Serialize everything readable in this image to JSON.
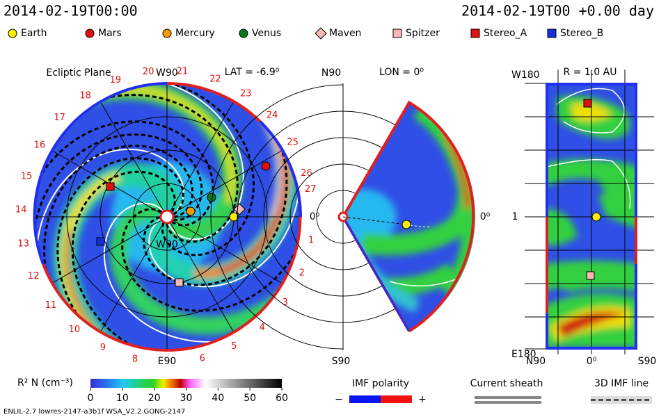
{
  "header": {
    "time_left": "2014-02-19T00:00",
    "time_right": "2014-02-19T00 +0.00 day"
  },
  "legend": [
    {
      "name": "Earth",
      "color": "#ffee00",
      "shape": "circle"
    },
    {
      "name": "Mars",
      "color": "#e01010",
      "shape": "circle"
    },
    {
      "name": "Mercury",
      "color": "#f59a00",
      "shape": "circle"
    },
    {
      "name": "Venus",
      "color": "#0c7a1a",
      "shape": "circle"
    },
    {
      "name": "Maven",
      "color": "#f7b8b8",
      "shape": "diamond"
    },
    {
      "name": "Spitzer",
      "color": "#f7b8b8",
      "shape": "square"
    },
    {
      "name": "Stereo_A",
      "color": "#e01010",
      "shape": "square"
    },
    {
      "name": "Stereo_B",
      "color": "#1030e0",
      "shape": "square"
    }
  ],
  "ecliptic": {
    "title": "Ecliptic Plane",
    "top": "W90",
    "lat": "LAT = -6.9⁰",
    "right": "0⁰",
    "bottom": "E90",
    "center": "W90",
    "sectors": [
      "1",
      "2",
      "3",
      "4",
      "5",
      "6",
      "8",
      "9",
      "10",
      "11",
      "12",
      "13",
      "14",
      "15",
      "16",
      "17",
      "18",
      "19",
      "20",
      "21",
      "22",
      "23",
      "24",
      "25",
      "26",
      "27"
    ]
  },
  "meridional": {
    "top": "N90",
    "lon": "LON = 0⁰",
    "right": "0⁰",
    "bottom": "S90"
  },
  "radial": {
    "top": "W180",
    "r": "R = 1.0 AU",
    "mid": "1",
    "bottom": "E180",
    "x_left": "N90",
    "x_mid": "0⁰",
    "x_right": "S90"
  },
  "colorbar": {
    "label": "R² N (cm⁻³)",
    "ticks": [
      0,
      10,
      20,
      30,
      40,
      50,
      60
    ]
  },
  "imf": {
    "title": "IMF polarity",
    "minus": "−",
    "plus": "+"
  },
  "sheath": {
    "title": "Current sheath"
  },
  "imf_line": {
    "title": "3D IMF line"
  },
  "footer": "ENLIL-2.7 lowres-2147-a3b1f WSA_V2.2 GONG-2147"
}
